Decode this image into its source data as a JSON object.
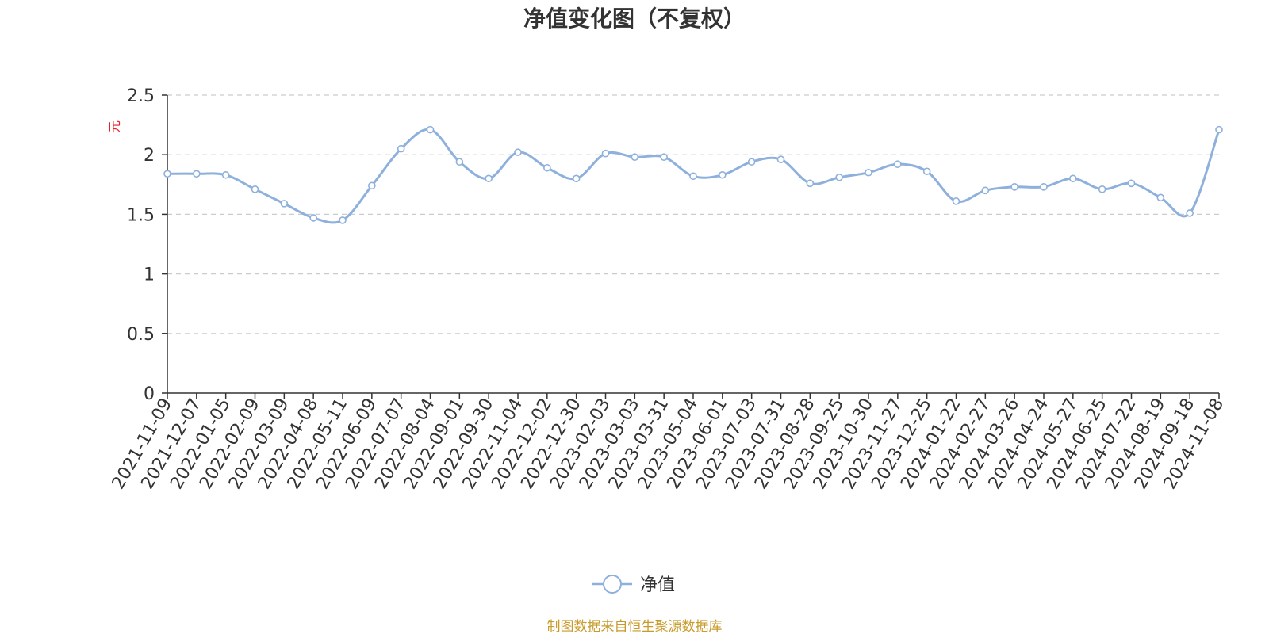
{
  "chart_data": {
    "type": "line",
    "title": "净值变化图（不复权）",
    "ylabel": "元",
    "ylim": [
      0,
      2.5
    ],
    "yticks": [
      "0",
      "0.5",
      "1",
      "1.5",
      "2",
      "2.5"
    ],
    "grid": true,
    "legend_position": "bottom",
    "x": [
      "2021-11-09",
      "2021-12-07",
      "2022-01-05",
      "2022-02-09",
      "2022-03-09",
      "2022-04-08",
      "2022-05-11",
      "2022-06-09",
      "2022-07-07",
      "2022-08-04",
      "2022-09-01",
      "2022-09-30",
      "2022-11-04",
      "2022-12-02",
      "2022-12-30",
      "2023-02-03",
      "2023-03-03",
      "2023-03-31",
      "2023-05-04",
      "2023-06-01",
      "2023-07-03",
      "2023-07-31",
      "2023-08-28",
      "2023-09-25",
      "2023-10-30",
      "2023-11-27",
      "2023-12-25",
      "2024-01-22",
      "2024-02-27",
      "2024-03-26",
      "2024-04-24",
      "2024-05-27",
      "2024-06-25",
      "2024-07-22",
      "2024-08-19",
      "2024-09-18",
      "2024-11-08"
    ],
    "series": [
      {
        "name": "净值",
        "color": "#8eb0dc",
        "values": [
          1.84,
          1.84,
          1.83,
          1.71,
          1.59,
          1.47,
          1.45,
          1.74,
          2.05,
          2.21,
          1.94,
          1.8,
          2.02,
          1.89,
          1.8,
          2.01,
          1.98,
          1.98,
          1.82,
          1.83,
          1.94,
          1.96,
          1.76,
          1.81,
          1.85,
          1.92,
          1.86,
          1.61,
          1.7,
          1.73,
          1.73,
          1.8,
          1.71,
          1.76,
          1.64,
          1.51,
          2.21
        ]
      }
    ]
  },
  "legend": {
    "label": "净值"
  },
  "source_note": "制图数据来自恒生聚源数据库"
}
